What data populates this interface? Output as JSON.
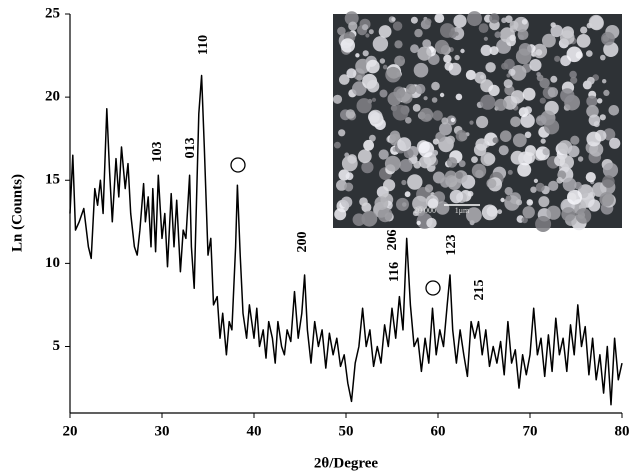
{
  "chart_data": {
    "type": "line",
    "x_label": "2θ/Degree",
    "y_label": "Ln (Counts)",
    "xlim": [
      20,
      80
    ],
    "xticks": [
      20,
      30,
      40,
      50,
      60,
      70,
      80
    ],
    "ylim": [
      1,
      25
    ],
    "yticks": [
      5,
      10,
      15,
      20,
      25
    ],
    "color": "#000000",
    "annotations": [
      "110",
      "103",
      "013",
      "200",
      "206",
      "116",
      "123",
      "215"
    ],
    "inset_labels": [
      "20 000",
      "1μm"
    ],
    "x": [
      20,
      20.3,
      20.6,
      21,
      21.5,
      22,
      22.3,
      22.7,
      23,
      23.3,
      23.6,
      24,
      24.3,
      24.6,
      25,
      25.3,
      25.6,
      26,
      26.3,
      26.6,
      27,
      27.3,
      27.6,
      28,
      28.2,
      28.5,
      28.8,
      29,
      29.3,
      29.6,
      30,
      30.3,
      30.6,
      31,
      31.3,
      31.6,
      32,
      32.3,
      32.6,
      33,
      33.2,
      33.5,
      34,
      34.3,
      34.6,
      35,
      35.3,
      35.6,
      36,
      36.3,
      36.6,
      37,
      37.3,
      37.6,
      38,
      38.2,
      38.5,
      38.8,
      39.2,
      39.5,
      40,
      40.3,
      40.6,
      41,
      41.3,
      41.6,
      42,
      42.3,
      42.6,
      43,
      43.3,
      43.6,
      44,
      44.4,
      44.8,
      45.2,
      45.5,
      45.8,
      46.2,
      46.6,
      47,
      47.4,
      47.8,
      48.2,
      48.6,
      49,
      49.4,
      49.8,
      50.2,
      50.6,
      51,
      51.4,
      51.8,
      52.2,
      52.6,
      53,
      53.4,
      53.8,
      54.2,
      54.6,
      55,
      55.4,
      55.8,
      56.2,
      56.6,
      57,
      57.4,
      57.8,
      58.2,
      58.6,
      59,
      59.4,
      59.8,
      60.2,
      60.6,
      61,
      61.3,
      61.6,
      62,
      62.4,
      62.8,
      63.2,
      63.6,
      64,
      64.4,
      64.8,
      65.2,
      65.6,
      66,
      66.4,
      66.8,
      67.2,
      67.6,
      68,
      68.4,
      68.8,
      69.2,
      69.6,
      70,
      70.4,
      70.8,
      71.2,
      71.6,
      72,
      72.4,
      72.8,
      73.2,
      73.6,
      74,
      74.4,
      74.8,
      75.2,
      75.6,
      76,
      76.4,
      76.8,
      77.2,
      77.6,
      78,
      78.4,
      78.8,
      79.2,
      79.6,
      80
    ],
    "values": [
      13,
      16.5,
      12,
      12.5,
      13.3,
      11,
      10.3,
      14.5,
      13.5,
      15,
      13,
      19.3,
      15.5,
      12.5,
      16.3,
      14,
      17,
      14.5,
      16,
      13,
      11,
      10.5,
      12,
      14.8,
      12.5,
      14,
      11,
      14.5,
      10.7,
      15.3,
      11.5,
      13,
      9.8,
      14.2,
      11,
      13.8,
      9.5,
      12,
      11.5,
      15.3,
      11,
      8.5,
      19,
      21.3,
      17,
      10.5,
      11.5,
      7.5,
      8,
      5.5,
      7,
      4.5,
      6.5,
      6,
      11,
      14.7,
      10.5,
      7,
      5.5,
      7.5,
      5.5,
      7.3,
      5,
      6,
      4.3,
      6.5,
      5.5,
      4,
      6.5,
      5,
      4.5,
      6,
      5.3,
      8.3,
      5.5,
      7,
      9.3,
      6,
      4,
      6.5,
      5,
      6,
      3.7,
      5.8,
      4.5,
      5.5,
      3.8,
      4.5,
      2.8,
      1.7,
      4,
      5,
      7.3,
      5,
      6,
      3.8,
      5,
      4,
      6.3,
      5,
      7.3,
      5.5,
      8,
      6,
      11.5,
      7.5,
      5,
      5.5,
      3.5,
      5.5,
      4,
      7.3,
      4.5,
      6,
      5,
      7.5,
      9.3,
      6,
      4,
      6,
      4.5,
      3.2,
      6.5,
      5.5,
      6.5,
      4.5,
      6,
      3.8,
      5,
      4,
      5.3,
      3.3,
      6.5,
      4,
      4.8,
      2.5,
      4.5,
      3.3,
      4.5,
      7.3,
      4.5,
      5.5,
      3.2,
      5.7,
      3.5,
      6.7,
      4.5,
      5.5,
      3.5,
      6.3,
      4.5,
      7.5,
      5,
      6.2,
      3.3,
      5.5,
      3,
      4.5,
      2.2,
      5,
      1.5,
      5.5,
      3,
      4
    ]
  }
}
